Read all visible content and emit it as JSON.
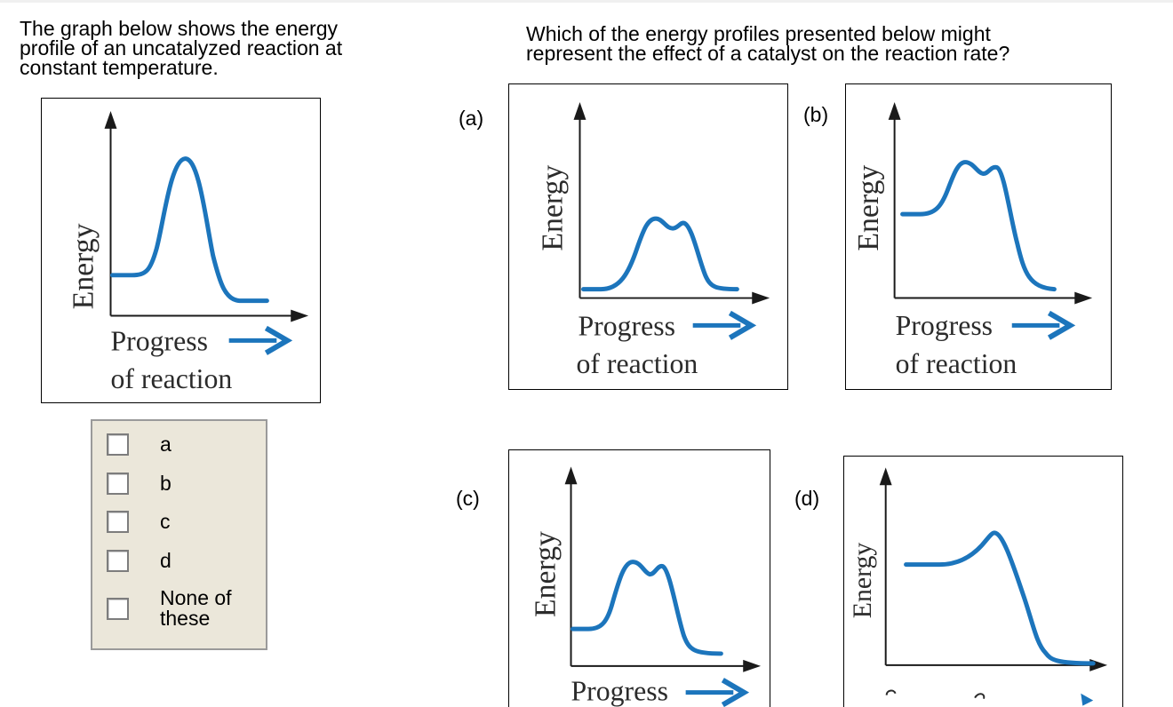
{
  "intro_text": "The graph below shows the energy\nprofile of an uncatalyzed reaction at\nconstant temperature.",
  "question_text": "Which of the energy profiles presented below might\nrepresent the effect of a catalyst on the reaction rate?",
  "figures": {
    "reference": {
      "y_label": "Energy",
      "x_label_line1": "Progress",
      "x_label_line2": "of reaction"
    },
    "a": {
      "label": "(a)",
      "y_label": "Energy",
      "x_label_line1": "Progress",
      "x_label_line2": "of reaction"
    },
    "b": {
      "label": "(b)",
      "y_label": "Energy",
      "x_label_line1": "Progress",
      "x_label_line2": "of reaction"
    },
    "c": {
      "label": "(c)",
      "y_label": "Energy",
      "x_label_line1": "Progress"
    },
    "d": {
      "label": "(d)",
      "y_label": "Energy"
    }
  },
  "options": [
    {
      "label": "a",
      "checked": false
    },
    {
      "label": "b",
      "checked": false
    },
    {
      "label": "c",
      "checked": false
    },
    {
      "label": "d",
      "checked": false
    },
    {
      "label": "None of\nthese",
      "checked": false
    }
  ],
  "colors": {
    "curve": "#1c75bc",
    "axis": "#1a1a1a",
    "panel_bg": "#ebe7da"
  }
}
